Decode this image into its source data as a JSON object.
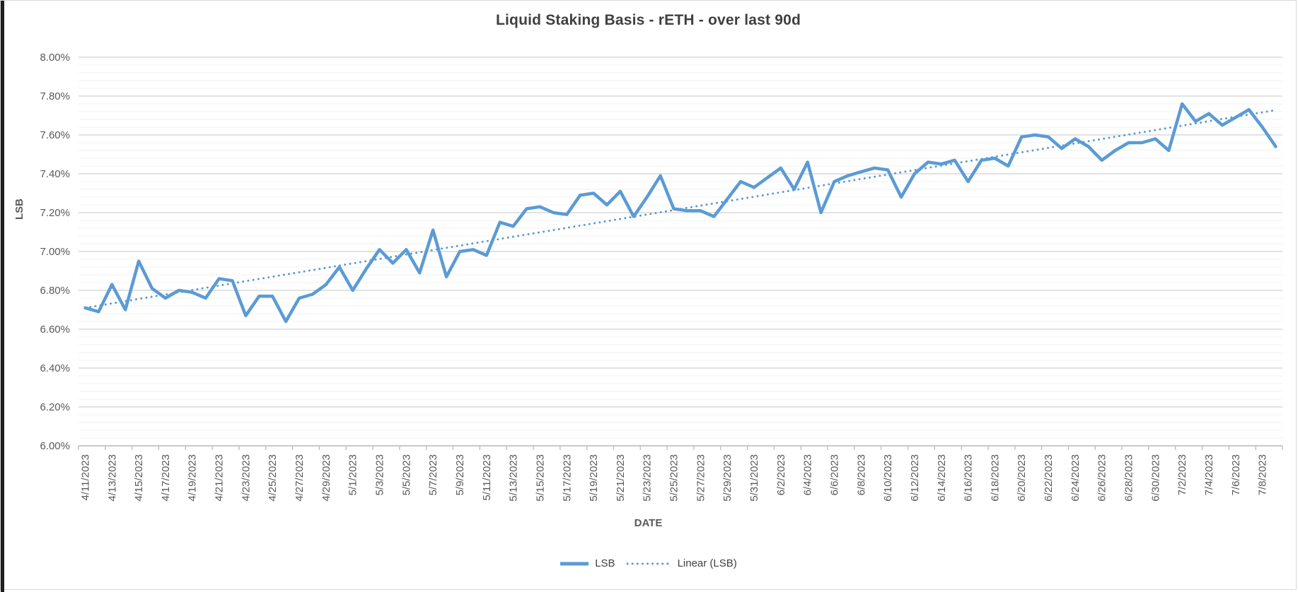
{
  "chart_data": {
    "type": "line",
    "title": "Liquid Staking Basis - rETH - over last 90d",
    "xlabel": "DATE",
    "ylabel": "LSB",
    "ylim": [
      6.0,
      8.0
    ],
    "y_major_step": 0.2,
    "y_minor_step": 0.04,
    "y_tick_format": "percent-2dp",
    "x_label_interval": 2,
    "x_label_rotation": -90,
    "grid": true,
    "legend_position": "bottom",
    "dates": [
      "4/11/2023",
      "4/12/2023",
      "4/13/2023",
      "4/14/2023",
      "4/15/2023",
      "4/16/2023",
      "4/17/2023",
      "4/18/2023",
      "4/19/2023",
      "4/20/2023",
      "4/21/2023",
      "4/22/2023",
      "4/23/2023",
      "4/24/2023",
      "4/25/2023",
      "4/26/2023",
      "4/27/2023",
      "4/28/2023",
      "4/29/2023",
      "4/30/2023",
      "5/1/2023",
      "5/2/2023",
      "5/3/2023",
      "5/4/2023",
      "5/5/2023",
      "5/6/2023",
      "5/7/2023",
      "5/8/2023",
      "5/9/2023",
      "5/10/2023",
      "5/11/2023",
      "5/12/2023",
      "5/13/2023",
      "5/14/2023",
      "5/15/2023",
      "5/16/2023",
      "5/17/2023",
      "5/18/2023",
      "5/19/2023",
      "5/20/2023",
      "5/21/2023",
      "5/22/2023",
      "5/23/2023",
      "5/24/2023",
      "5/25/2023",
      "5/26/2023",
      "5/27/2023",
      "5/28/2023",
      "5/29/2023",
      "5/30/2023",
      "5/31/2023",
      "6/1/2023",
      "6/2/2023",
      "6/3/2023",
      "6/4/2023",
      "6/5/2023",
      "6/6/2023",
      "6/7/2023",
      "6/8/2023",
      "6/9/2023",
      "6/10/2023",
      "6/11/2023",
      "6/12/2023",
      "6/13/2023",
      "6/14/2023",
      "6/15/2023",
      "6/16/2023",
      "6/17/2023",
      "6/18/2023",
      "6/19/2023",
      "6/20/2023",
      "6/21/2023",
      "6/22/2023",
      "6/23/2023",
      "6/24/2023",
      "6/25/2023",
      "6/26/2023",
      "6/27/2023",
      "6/28/2023",
      "6/29/2023",
      "6/30/2023",
      "7/1/2023",
      "7/2/2023",
      "7/3/2023",
      "7/4/2023",
      "7/5/2023",
      "7/6/2023",
      "7/7/2023",
      "7/8/2023",
      "7/9/2023"
    ],
    "series": [
      {
        "name": "LSB",
        "values": [
          6.71,
          6.69,
          6.83,
          6.7,
          6.95,
          6.81,
          6.76,
          6.8,
          6.79,
          6.76,
          6.86,
          6.85,
          6.67,
          6.77,
          6.77,
          6.64,
          6.76,
          6.78,
          6.83,
          6.92,
          6.8,
          6.91,
          7.01,
          6.94,
          7.01,
          6.89,
          7.11,
          6.87,
          7.0,
          7.01,
          6.98,
          7.15,
          7.13,
          7.22,
          7.23,
          7.2,
          7.19,
          7.29,
          7.3,
          7.24,
          7.31,
          7.18,
          7.28,
          7.39,
          7.22,
          7.21,
          7.21,
          7.18,
          7.27,
          7.36,
          7.33,
          7.38,
          7.43,
          7.32,
          7.46,
          7.2,
          7.36,
          7.39,
          7.41,
          7.43,
          7.42,
          7.28,
          7.4,
          7.46,
          7.45,
          7.47,
          7.36,
          7.47,
          7.48,
          7.44,
          7.59,
          7.6,
          7.59,
          7.53,
          7.58,
          7.54,
          7.47,
          7.52,
          7.56,
          7.56,
          7.58,
          7.52,
          7.76,
          7.67,
          7.71,
          7.65,
          7.69,
          7.73,
          7.64,
          7.54
        ]
      }
    ],
    "trendline": {
      "name": "Linear (LSB)",
      "style": "dotted",
      "based_on": "LSB"
    }
  },
  "legend": {
    "items": [
      {
        "label": "LSB",
        "marker": "solid-line"
      },
      {
        "label": "Linear (LSB)",
        "marker": "dotted-line"
      }
    ]
  },
  "colors": {
    "series_line": "#5b9bd5",
    "trend_line": "#5b9bd5",
    "title_text": "#404040",
    "axis_text": "#595959",
    "grid_major": "#d9d9d9",
    "grid_minor": "#f2f2f2",
    "axis_line": "#bfbfbf",
    "chart_border": "#d9d9d9",
    "background": "#ffffff"
  }
}
